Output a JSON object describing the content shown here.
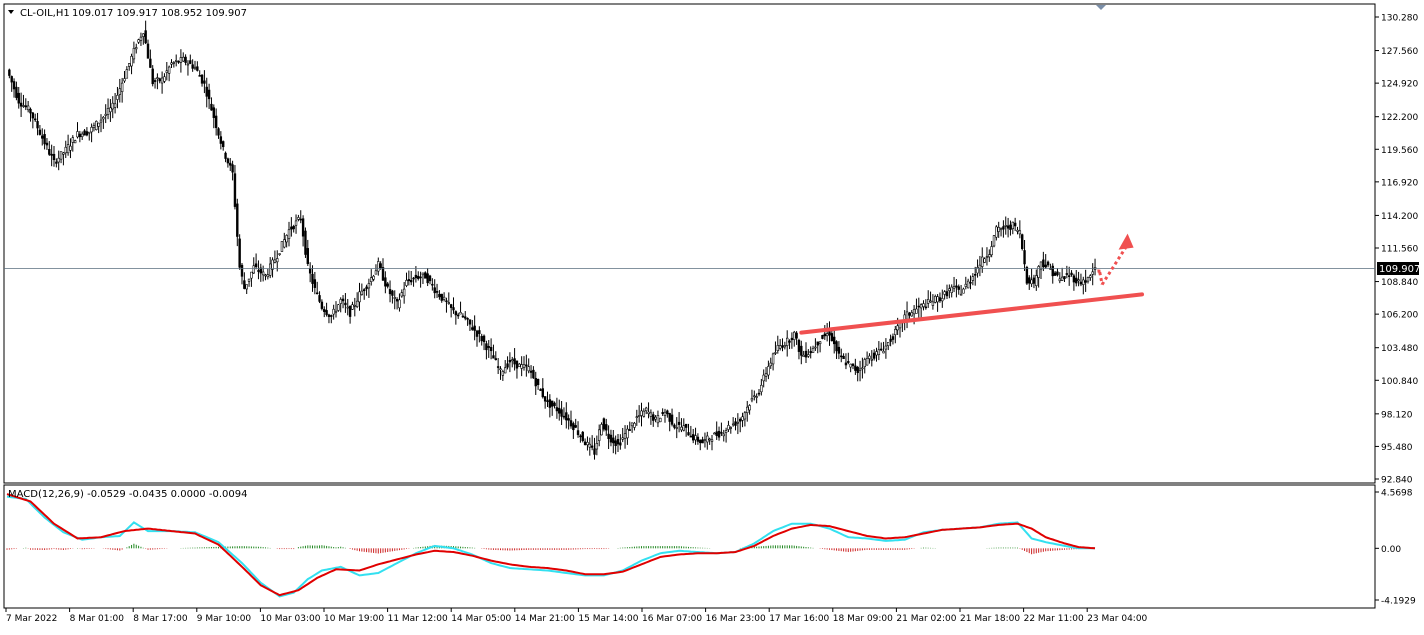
{
  "symbol_info": {
    "symbol": "CL-OIL,H1",
    "ohlc": "109.017 109.917 108.952 109.907"
  },
  "macd_info": {
    "label": "MACD(12,26,9) -0.0529 -0.0435 0.0000 -0.0094"
  },
  "current_price": "109.907",
  "price_ticks": [
    "130.280",
    "127.560",
    "124.920",
    "122.200",
    "119.560",
    "116.920",
    "114.200",
    "111.560",
    "108.840",
    "106.200",
    "103.480",
    "100.840",
    "98.120",
    "95.480",
    "92.840"
  ],
  "macd_ticks": [
    "4.5698",
    "0.00",
    "-4.1929"
  ],
  "time_labels": [
    "7 Mar 2022",
    "8 Mar 01:00",
    "8 Mar 17:00",
    "9 Mar 10:00",
    "10 Mar 03:00",
    "10 Mar 19:00",
    "11 Mar 12:00",
    "14 Mar 05:00",
    "14 Mar 21:00",
    "15 Mar 14:00",
    "16 Mar 07:00",
    "16 Mar 23:00",
    "17 Mar 16:00",
    "18 Mar 09:00",
    "21 Mar 02:00",
    "21 Mar 18:00",
    "22 Mar 11:00",
    "23 Mar 04:00"
  ],
  "colors": {
    "bull": "#000000",
    "bear": "#000000",
    "signal_line": "#e00000",
    "macd_line": "#33e0f0",
    "hist_pos": "#228822",
    "hist_neg": "#cc2222",
    "trendline": "#f05050",
    "price_line": "#5a6e7e"
  },
  "chart_data": {
    "type": "candlestick",
    "title": "CL-OIL,H1",
    "ylim": [
      92.0,
      131.0
    ],
    "price_anchors": [
      [
        0,
        126.0
      ],
      [
        5,
        123.5
      ],
      [
        10,
        122.6
      ],
      [
        15,
        120.5
      ],
      [
        20,
        118.5
      ],
      [
        25,
        119.5
      ],
      [
        30,
        120.8
      ],
      [
        35,
        121.0
      ],
      [
        40,
        122.0
      ],
      [
        45,
        123.0
      ],
      [
        50,
        125.5
      ],
      [
        55,
        128.0
      ],
      [
        58,
        129.2
      ],
      [
        62,
        125.0
      ],
      [
        66,
        125.2
      ],
      [
        70,
        126.5
      ],
      [
        75,
        126.8
      ],
      [
        80,
        126.2
      ],
      [
        84,
        124.8
      ],
      [
        88,
        122.2
      ],
      [
        92,
        119.5
      ],
      [
        96,
        117.6
      ],
      [
        99,
        110.0
      ],
      [
        101,
        108.3
      ],
      [
        105,
        110.0
      ],
      [
        110,
        109.3
      ],
      [
        115,
        111.0
      ],
      [
        120,
        113.0
      ],
      [
        125,
        114.0
      ],
      [
        128,
        110.0
      ],
      [
        131,
        108.2
      ],
      [
        134,
        106.8
      ],
      [
        138,
        106.0
      ],
      [
        142,
        107.3
      ],
      [
        146,
        106.3
      ],
      [
        150,
        107.8
      ],
      [
        154,
        108.8
      ],
      [
        158,
        110.2
      ],
      [
        162,
        108.2
      ],
      [
        166,
        107.0
      ],
      [
        170,
        108.8
      ],
      [
        174,
        109.2
      ],
      [
        178,
        109.3
      ],
      [
        182,
        108.2
      ],
      [
        186,
        107.3
      ],
      [
        190,
        106.4
      ],
      [
        194,
        106.0
      ],
      [
        198,
        105.1
      ],
      [
        202,
        104.2
      ],
      [
        206,
        103.0
      ],
      [
        210,
        101.5
      ],
      [
        214,
        102.4
      ],
      [
        218,
        102.0
      ],
      [
        222,
        101.8
      ],
      [
        226,
        100.3
      ],
      [
        230,
        99.0
      ],
      [
        234,
        98.5
      ],
      [
        238,
        97.8
      ],
      [
        242,
        96.9
      ],
      [
        246,
        95.8
      ],
      [
        250,
        95.0
      ],
      [
        253,
        97.5
      ],
      [
        256,
        96.3
      ],
      [
        260,
        95.6
      ],
      [
        264,
        96.7
      ],
      [
        268,
        97.8
      ],
      [
        272,
        98.4
      ],
      [
        276,
        97.6
      ],
      [
        280,
        98.3
      ],
      [
        284,
        97.2
      ],
      [
        288,
        97.0
      ],
      [
        292,
        96.2
      ],
      [
        296,
        95.8
      ],
      [
        300,
        96.3
      ],
      [
        304,
        96.6
      ],
      [
        308,
        97.2
      ],
      [
        312,
        97.6
      ],
      [
        316,
        99.0
      ],
      [
        320,
        100.0
      ],
      [
        324,
        102.0
      ],
      [
        328,
        103.5
      ],
      [
        332,
        104.0
      ],
      [
        335,
        104.6
      ],
      [
        338,
        102.8
      ],
      [
        342,
        103.2
      ],
      [
        346,
        104.2
      ],
      [
        350,
        104.7
      ],
      [
        354,
        102.8
      ],
      [
        358,
        102.1
      ],
      [
        362,
        101.6
      ],
      [
        366,
        102.6
      ],
      [
        370,
        103.0
      ],
      [
        374,
        103.6
      ],
      [
        378,
        104.7
      ],
      [
        382,
        106.0
      ],
      [
        386,
        106.5
      ],
      [
        390,
        106.9
      ],
      [
        394,
        107.3
      ],
      [
        398,
        107.6
      ],
      [
        402,
        108.3
      ],
      [
        406,
        108.0
      ],
      [
        410,
        109.0
      ],
      [
        414,
        110.3
      ],
      [
        418,
        111.3
      ],
      [
        421,
        113.0
      ],
      [
        425,
        113.2
      ],
      [
        428,
        113.4
      ],
      [
        431,
        112.8
      ],
      [
        434,
        109.0
      ],
      [
        437,
        108.8
      ],
      [
        440,
        110.5
      ],
      [
        444,
        109.8
      ],
      [
        448,
        109.0
      ],
      [
        452,
        109.4
      ],
      [
        456,
        108.8
      ],
      [
        460,
        109.0
      ],
      [
        463,
        109.9
      ]
    ],
    "macd_anchors": [
      [
        0,
        4.2
      ],
      [
        8,
        4.0
      ],
      [
        16,
        2.5
      ],
      [
        24,
        1.3
      ],
      [
        32,
        0.7
      ],
      [
        40,
        0.9
      ],
      [
        48,
        1.0
      ],
      [
        54,
        2.1
      ],
      [
        60,
        1.4
      ],
      [
        70,
        1.4
      ],
      [
        80,
        1.3
      ],
      [
        90,
        0.5
      ],
      [
        100,
        -1.2
      ],
      [
        108,
        -2.8
      ],
      [
        116,
        -3.9
      ],
      [
        122,
        -3.6
      ],
      [
        128,
        -2.5
      ],
      [
        134,
        -1.8
      ],
      [
        142,
        -1.5
      ],
      [
        150,
        -2.2
      ],
      [
        158,
        -2.0
      ],
      [
        166,
        -1.2
      ],
      [
        174,
        -0.4
      ],
      [
        182,
        0.2
      ],
      [
        190,
        0.0
      ],
      [
        198,
        -0.5
      ],
      [
        206,
        -1.2
      ],
      [
        214,
        -1.6
      ],
      [
        222,
        -1.7
      ],
      [
        230,
        -1.8
      ],
      [
        238,
        -2.0
      ],
      [
        246,
        -2.2
      ],
      [
        254,
        -2.2
      ],
      [
        262,
        -1.8
      ],
      [
        270,
        -1.0
      ],
      [
        278,
        -0.4
      ],
      [
        286,
        -0.2
      ],
      [
        294,
        -0.3
      ],
      [
        302,
        -0.4
      ],
      [
        310,
        -0.3
      ],
      [
        318,
        0.4
      ],
      [
        326,
        1.4
      ],
      [
        334,
        2.0
      ],
      [
        342,
        2.0
      ],
      [
        350,
        1.6
      ],
      [
        358,
        0.9
      ],
      [
        366,
        0.8
      ],
      [
        374,
        0.6
      ],
      [
        382,
        0.7
      ],
      [
        390,
        1.3
      ],
      [
        398,
        1.5
      ],
      [
        406,
        1.6
      ],
      [
        414,
        1.7
      ],
      [
        422,
        2.0
      ],
      [
        430,
        2.1
      ],
      [
        436,
        0.8
      ],
      [
        442,
        0.5
      ],
      [
        450,
        0.2
      ],
      [
        456,
        0.0
      ],
      [
        463,
        0.0
      ]
    ],
    "signal_anchors": [
      [
        0,
        4.4
      ],
      [
        10,
        3.8
      ],
      [
        20,
        2.0
      ],
      [
        30,
        0.8
      ],
      [
        40,
        0.9
      ],
      [
        50,
        1.4
      ],
      [
        60,
        1.6
      ],
      [
        70,
        1.4
      ],
      [
        80,
        1.2
      ],
      [
        90,
        0.3
      ],
      [
        100,
        -1.5
      ],
      [
        108,
        -3.0
      ],
      [
        116,
        -3.8
      ],
      [
        124,
        -3.4
      ],
      [
        132,
        -2.4
      ],
      [
        140,
        -1.7
      ],
      [
        150,
        -1.8
      ],
      [
        158,
        -1.3
      ],
      [
        166,
        -0.9
      ],
      [
        174,
        -0.5
      ],
      [
        182,
        -0.2
      ],
      [
        190,
        -0.3
      ],
      [
        198,
        -0.6
      ],
      [
        206,
        -1.0
      ],
      [
        214,
        -1.3
      ],
      [
        222,
        -1.5
      ],
      [
        230,
        -1.6
      ],
      [
        238,
        -1.8
      ],
      [
        246,
        -2.1
      ],
      [
        254,
        -2.1
      ],
      [
        262,
        -1.9
      ],
      [
        270,
        -1.3
      ],
      [
        278,
        -0.7
      ],
      [
        286,
        -0.5
      ],
      [
        294,
        -0.4
      ],
      [
        302,
        -0.4
      ],
      [
        310,
        -0.3
      ],
      [
        318,
        0.2
      ],
      [
        326,
        1.0
      ],
      [
        334,
        1.6
      ],
      [
        342,
        1.9
      ],
      [
        350,
        1.8
      ],
      [
        358,
        1.4
      ],
      [
        366,
        1.0
      ],
      [
        374,
        0.8
      ],
      [
        382,
        0.9
      ],
      [
        390,
        1.2
      ],
      [
        398,
        1.5
      ],
      [
        406,
        1.6
      ],
      [
        414,
        1.7
      ],
      [
        422,
        1.9
      ],
      [
        430,
        2.0
      ],
      [
        436,
        1.6
      ],
      [
        442,
        0.9
      ],
      [
        450,
        0.4
      ],
      [
        456,
        0.1
      ],
      [
        463,
        0.0
      ]
    ],
    "macd_ylim": [
      -4.4,
      4.7
    ],
    "trendline": {
      "start": [
        338,
        104.7
      ],
      "end": [
        483,
        107.8
      ]
    },
    "arrow_hint": {
      "from": [
        466,
        108.6
      ],
      "to": [
        476,
        112.4
      ]
    },
    "last_price": 109.907
  }
}
